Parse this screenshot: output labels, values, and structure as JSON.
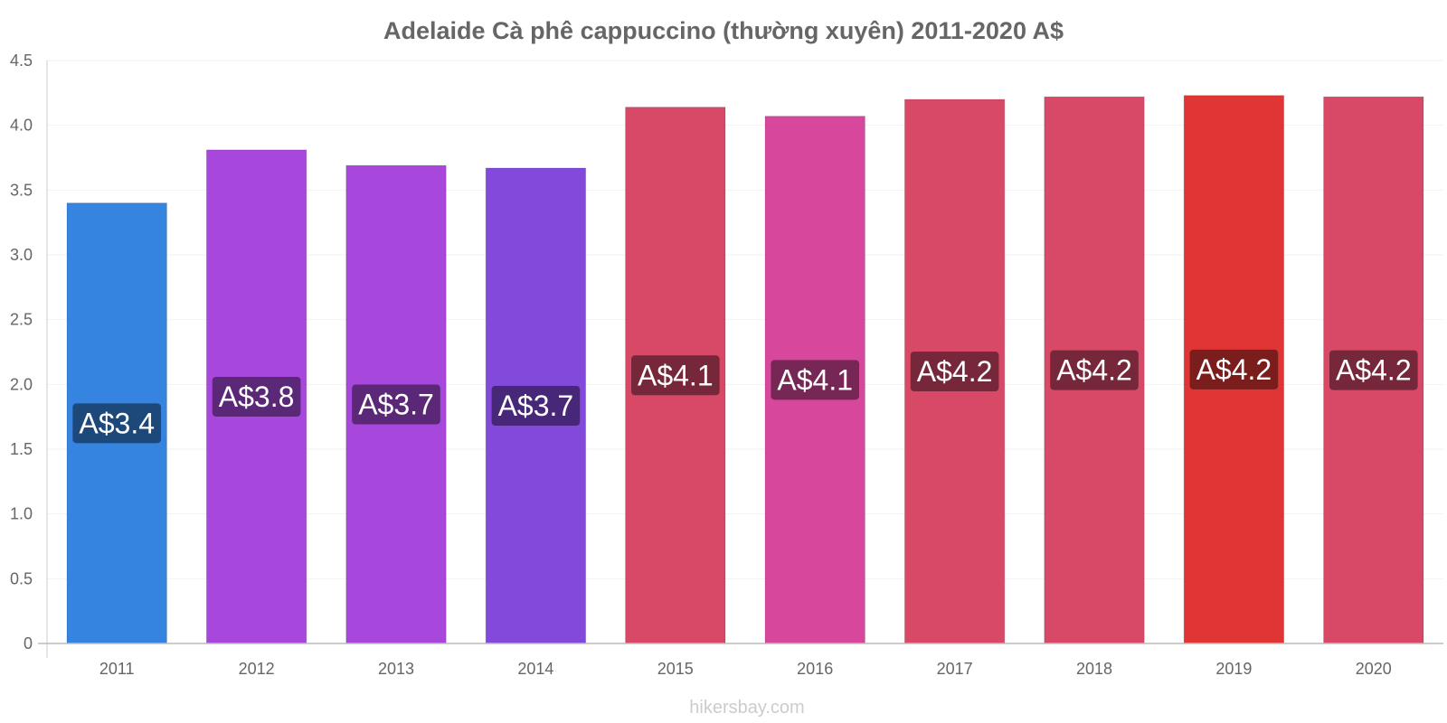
{
  "chart_data": {
    "type": "bar",
    "title": "Adelaide Cà phê cappuccino (thường xuyên) 2011-2020 A$",
    "xlabel": "",
    "ylabel": "",
    "categories": [
      "2011",
      "2012",
      "2013",
      "2014",
      "2015",
      "2016",
      "2017",
      "2018",
      "2019",
      "2020"
    ],
    "values": [
      3.4,
      3.81,
      3.69,
      3.67,
      4.14,
      4.07,
      4.2,
      4.22,
      4.23,
      4.22
    ],
    "data_labels": [
      "A$3.4",
      "A$3.8",
      "A$3.7",
      "A$3.7",
      "A$4.1",
      "A$4.1",
      "A$4.2",
      "A$4.2",
      "A$4.2",
      "A$4.2"
    ],
    "bar_colors": [
      "#3584e0",
      "#a747db",
      "#a747db",
      "#8249db",
      "#d74966",
      "#d7489c",
      "#d74966",
      "#d74966",
      "#e03535",
      "#d74966"
    ],
    "label_bg_colors": [
      "#1b436f",
      "#53236b",
      "#53236b",
      "#40246b",
      "#6b2434",
      "#6b244e",
      "#6b2434",
      "#6b2434",
      "#6f1b1b",
      "#6b2434"
    ],
    "yticks": [
      "0",
      "0.5",
      "1.0",
      "1.5",
      "2.0",
      "2.5",
      "3.0",
      "3.5",
      "4.0",
      "4.5"
    ],
    "ylim": [
      0,
      4.5
    ],
    "grid": true,
    "legend": "none"
  },
  "credit": "hikersbay.com"
}
